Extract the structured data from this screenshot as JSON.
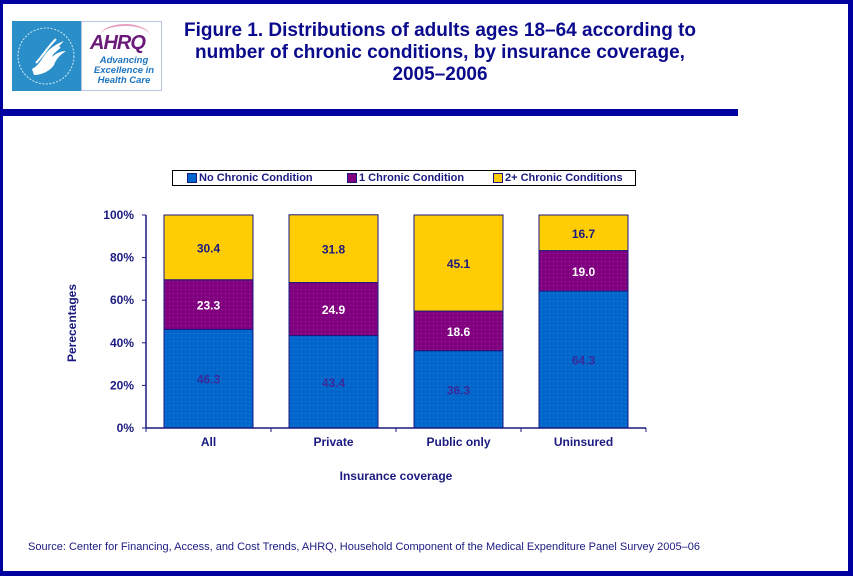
{
  "header": {
    "logo_hhs_alt": "Department of Health & Human Services USA",
    "logo_ahrq_wordmark": "AHRQ",
    "logo_ahrq_tagline": "Advancing Excellence in Health Care",
    "title": "Figure 1. Distributions of adults ages 18–64 according to number of chronic conditions, by insurance coverage, 2005–2006"
  },
  "legend": {
    "items": [
      {
        "label": "No Chronic Condition",
        "color": "#0066CC"
      },
      {
        "label": "1 Chronic Condition",
        "color": "#800080"
      },
      {
        "label": "2+ Chronic Conditions",
        "color": "#FFCC00"
      }
    ]
  },
  "chart_data": {
    "type": "bar",
    "stacked": true,
    "title": "Figure 1. Distributions of adults ages 18–64 according to number of chronic conditions, by insurance coverage, 2005–2006",
    "xlabel": "Insurance coverage",
    "ylabel": "Perecentages",
    "ylim": [
      0,
      100
    ],
    "yticks": [
      "0%",
      "20%",
      "40%",
      "60%",
      "80%",
      "100%"
    ],
    "categories": [
      "All",
      "Private",
      "Public only",
      "Uninsured"
    ],
    "series": [
      {
        "name": "No Chronic Condition",
        "color": "#0066CC",
        "label_color": "#3B2A9A",
        "values": [
          46.3,
          43.4,
          36.3,
          64.3
        ]
      },
      {
        "name": "1 Chronic Condition",
        "color": "#800080",
        "label_color": "#FFFFFF",
        "values": [
          23.3,
          24.9,
          18.6,
          19.0
        ]
      },
      {
        "name": "2+ Chronic Conditions",
        "color": "#FFCC00",
        "label_color": "#1A1A80",
        "values": [
          30.4,
          31.8,
          45.1,
          16.7
        ]
      }
    ],
    "value_labels": [
      [
        "46.3",
        "43.4",
        "36.3",
        "64.3"
      ],
      [
        "23.3",
        "24.9",
        "18.6",
        "19.0"
      ],
      [
        "30.4",
        "31.8",
        "45.1",
        "16.7"
      ]
    ],
    "legend_position": "top",
    "grid": false
  },
  "footer": {
    "source": "Source: Center for Financing, Access, and Cost Trends, AHRQ, Household Component of the Medical Expenditure Panel Survey 2005–06"
  },
  "colors": {
    "border": "#0000A0",
    "text": "#1A1A80",
    "axis": "#1A1A80"
  }
}
